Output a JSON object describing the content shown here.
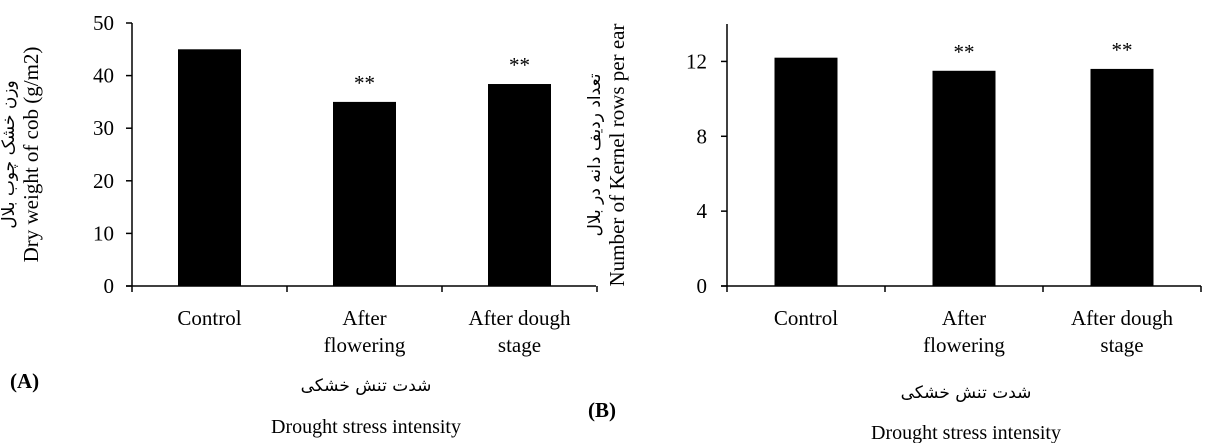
{
  "chart_data": [
    {
      "type": "bar",
      "panel_label": "(A)",
      "categories": [
        [
          "Control"
        ],
        [
          "After",
          "flowering"
        ],
        [
          "After dough",
          "stage"
        ]
      ],
      "values": [
        45,
        35,
        38.4
      ],
      "significance": [
        "",
        "**",
        "**"
      ],
      "ylabel": "Dry weight of cob (g/m2)",
      "ylabel_fa": "وزن خشک چوب بلال",
      "xlabel": "Drought stress intensity",
      "xlabel_fa": "شدت تنش خشکی",
      "ylim": [
        0,
        50
      ],
      "yticks": [
        0,
        10,
        20,
        30,
        40,
        50
      ],
      "bar_color": "#000000",
      "grid": false
    },
    {
      "type": "bar",
      "panel_label": "(B)",
      "categories": [
        [
          "Control"
        ],
        [
          "After",
          "flowering"
        ],
        [
          "After dough",
          "stage"
        ]
      ],
      "values": [
        12.2,
        11.5,
        11.6
      ],
      "significance": [
        "",
        "**",
        "**"
      ],
      "ylabel": "Number of Kernel rows per ear",
      "ylabel_fa": "تعداد ردیف دانه در بلال",
      "xlabel": "Drought stress intensity",
      "xlabel_fa": "شدت تنش خشکی",
      "ylim": [
        0,
        14
      ],
      "yticks": [
        0,
        4,
        8,
        12
      ],
      "bar_color": "#000000",
      "grid": false
    }
  ]
}
